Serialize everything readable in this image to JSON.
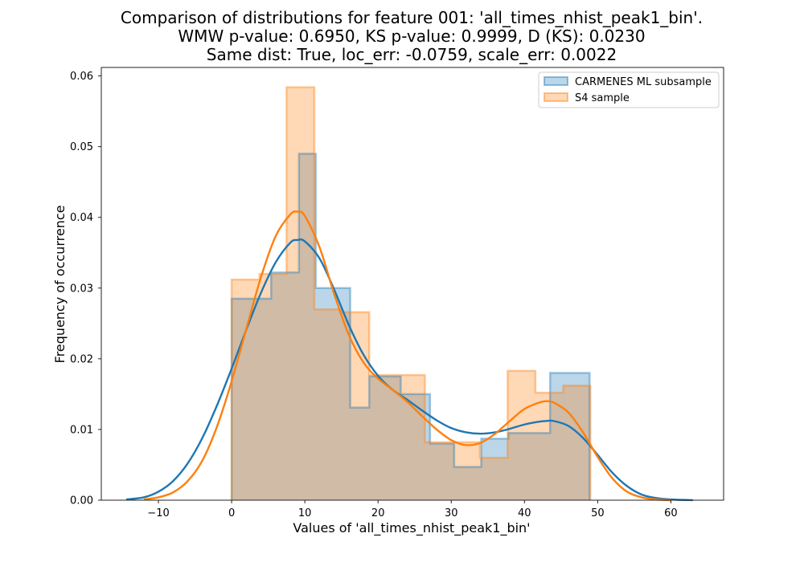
{
  "chart_data": {
    "type": "histogram",
    "title_lines": [
      "Comparison of distributions for feature 001: 'all_times_nhist_peak1_bin'.",
      "WMW p-value: 0.6950, KS p-value: 0.9999, D (KS): 0.0230",
      "Same dist: True, loc_err: -0.0759, scale_err: 0.0022"
    ],
    "xlabel": "Values of 'all_times_nhist_peak1_bin'",
    "ylabel": "Frequency of occurrence",
    "xlim": [
      -17.8,
      67.2
    ],
    "ylim": [
      0,
      0.0612
    ],
    "x_ticks": [
      -10,
      0,
      10,
      20,
      30,
      40,
      50,
      60
    ],
    "y_ticks": [
      0.0,
      0.01,
      0.02,
      0.03,
      0.04,
      0.05,
      0.06
    ],
    "y_tick_labels": [
      "0.00",
      "0.01",
      "0.02",
      "0.03",
      "0.04",
      "0.05",
      "0.06"
    ],
    "grid": false,
    "legend_position": "top-right",
    "series": [
      {
        "name": "CARMENES ML subsample",
        "color": "#1f77b4",
        "bin_edges": [
          0,
          5.4,
          9.2,
          11.5,
          16.2,
          18.8,
          23.1,
          27.1,
          30.4,
          34.1,
          37.8,
          43.5,
          48.9
        ],
        "heights": [
          0.0285,
          0.0322,
          0.049,
          0.03,
          0.0131,
          0.0175,
          0.015,
          0.008,
          0.0047,
          0.0087,
          0.0095,
          0.018
        ],
        "kde": [
          [
            -14.4,
            0.0001
          ],
          [
            -12,
            0.0004
          ],
          [
            -10,
            0.0012
          ],
          [
            -8,
            0.0027
          ],
          [
            -6,
            0.0052
          ],
          [
            -4,
            0.0088
          ],
          [
            -2,
            0.0134
          ],
          [
            0,
            0.0186
          ],
          [
            2,
            0.0241
          ],
          [
            4,
            0.0293
          ],
          [
            6,
            0.0336
          ],
          [
            8,
            0.0364
          ],
          [
            9,
            0.0368
          ],
          [
            10,
            0.0366
          ],
          [
            12,
            0.0342
          ],
          [
            14,
            0.0298
          ],
          [
            16,
            0.0248
          ],
          [
            18,
            0.0206
          ],
          [
            20,
            0.0176
          ],
          [
            22,
            0.0156
          ],
          [
            24,
            0.0142
          ],
          [
            26,
            0.0127
          ],
          [
            28,
            0.0113
          ],
          [
            30,
            0.0102
          ],
          [
            32,
            0.0096
          ],
          [
            34,
            0.0094
          ],
          [
            36,
            0.0096
          ],
          [
            38,
            0.0101
          ],
          [
            40,
            0.0107
          ],
          [
            42,
            0.0111
          ],
          [
            43,
            0.0112
          ],
          [
            44,
            0.0112
          ],
          [
            46,
            0.0105
          ],
          [
            48,
            0.0088
          ],
          [
            50,
            0.0064
          ],
          [
            52,
            0.0039
          ],
          [
            54,
            0.002
          ],
          [
            56,
            0.0008
          ],
          [
            58,
            0.0003
          ],
          [
            60,
            0.0001
          ],
          [
            63,
            0.0
          ]
        ]
      },
      {
        "name": "S4 sample",
        "color": "#ff7f0e",
        "bin_edges": [
          0,
          3.8,
          7.5,
          11.3,
          15.1,
          18.8,
          22.6,
          26.4,
          30.2,
          33.9,
          37.7,
          41.5,
          45.3,
          49
        ],
        "heights": [
          0.0312,
          0.032,
          0.0584,
          0.027,
          0.0266,
          0.0177,
          0.0177,
          0.0082,
          0.0082,
          0.006,
          0.0183,
          0.0152,
          0.0162
        ],
        "kde": [
          [
            -12,
            0.0001
          ],
          [
            -10,
            0.0004
          ],
          [
            -8,
            0.0011
          ],
          [
            -6,
            0.0027
          ],
          [
            -4,
            0.0056
          ],
          [
            -2,
            0.0104
          ],
          [
            0,
            0.0168
          ],
          [
            2,
            0.0242
          ],
          [
            4,
            0.0315
          ],
          [
            6,
            0.0373
          ],
          [
            8,
            0.0404
          ],
          [
            9,
            0.0408
          ],
          [
            10,
            0.0402
          ],
          [
            12,
            0.0358
          ],
          [
            14,
            0.0292
          ],
          [
            16,
            0.0234
          ],
          [
            18,
            0.0195
          ],
          [
            20,
            0.0172
          ],
          [
            22,
            0.0156
          ],
          [
            24,
            0.0139
          ],
          [
            26,
            0.0119
          ],
          [
            28,
            0.01
          ],
          [
            30,
            0.0085
          ],
          [
            32,
            0.0078
          ],
          [
            34,
            0.0081
          ],
          [
            36,
            0.0094
          ],
          [
            38,
            0.0112
          ],
          [
            40,
            0.0129
          ],
          [
            42,
            0.0138
          ],
          [
            43,
            0.014
          ],
          [
            44,
            0.0138
          ],
          [
            46,
            0.0124
          ],
          [
            48,
            0.0096
          ],
          [
            50,
            0.0061
          ],
          [
            52,
            0.0031
          ],
          [
            54,
            0.0012
          ],
          [
            56,
            0.0004
          ],
          [
            58,
            0.0001
          ],
          [
            60,
            0.0
          ]
        ]
      }
    ]
  }
}
